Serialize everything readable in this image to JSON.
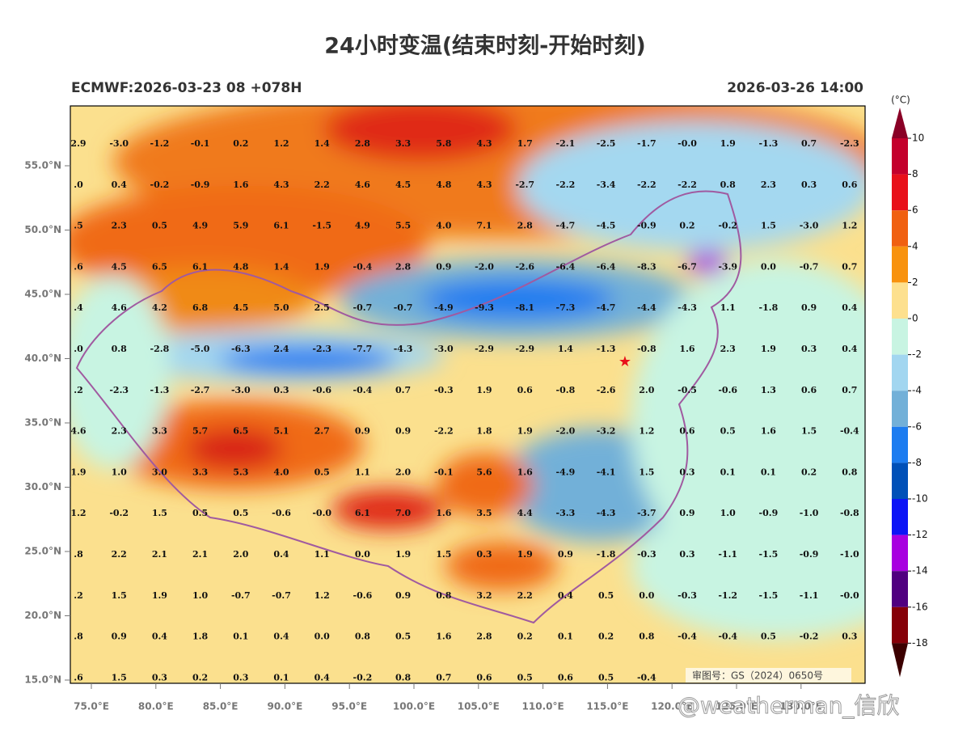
{
  "header": {
    "title": "24小时变温(结束时刻-开始时刻)",
    "model_run": "ECMWF:2026-03-23 08 +078H",
    "valid_time": "2026-03-26 14:00"
  },
  "map": {
    "lat_ticks": [
      {
        "value": 15,
        "label": "15.0°N"
      },
      {
        "value": 20,
        "label": "20.0°N"
      },
      {
        "value": 25,
        "label": "25.0°N"
      },
      {
        "value": 30,
        "label": "30.0°N"
      },
      {
        "value": 35,
        "label": "35.0°N"
      },
      {
        "value": 40,
        "label": "40.0°N"
      },
      {
        "value": 45,
        "label": "45.0°N"
      },
      {
        "value": 50,
        "label": "50.0°N"
      },
      {
        "value": 55,
        "label": "55.0°N"
      }
    ],
    "lon_ticks": [
      {
        "value": 75,
        "label": "75.0°E"
      },
      {
        "value": 80,
        "label": "80.0°E"
      },
      {
        "value": 85,
        "label": "85.0°E"
      },
      {
        "value": 90,
        "label": "90.0°E"
      },
      {
        "value": 95,
        "label": "95.0°E"
      },
      {
        "value": 100,
        "label": "100.0°E"
      },
      {
        "value": 105,
        "label": "105.0°E"
      },
      {
        "value": 110,
        "label": "110.0°E"
      },
      {
        "value": 115,
        "label": "115.0°E"
      },
      {
        "value": 120,
        "label": "120.0°E"
      },
      {
        "value": 125,
        "label": "125.0°E"
      },
      {
        "value": 130,
        "label": "130.0°E"
      }
    ],
    "grid_values": [
      [
        "2.9",
        "-3.0",
        "-1.2",
        "-0.1",
        "0.2",
        "1.2",
        "1.4",
        "2.8",
        "3.3",
        "5.8",
        "4.3",
        "1.7",
        "-2.1",
        "-2.5",
        "-1.7",
        "-0.0",
        "1.9",
        "-1.3",
        "0.7",
        "-2.3"
      ],
      [
        ".0",
        "0.4",
        "-0.2",
        "-0.9",
        "1.6",
        "4.3",
        "2.2",
        "4.6",
        "4.5",
        "4.8",
        "4.3",
        "-2.7",
        "-2.2",
        "-3.4",
        "-2.2",
        "-2.2",
        "0.8",
        "2.3",
        "0.3",
        "0.6"
      ],
      [
        ".5",
        "2.3",
        "0.5",
        "4.9",
        "5.9",
        "6.1",
        "-1.5",
        "4.9",
        "5.5",
        "4.0",
        "7.1",
        "2.8",
        "-4.7",
        "-4.5",
        "-0.9",
        "0.2",
        "-0.2",
        "1.5",
        "-3.0",
        "1.2"
      ],
      [
        ".6",
        "4.5",
        "6.5",
        "6.1",
        "4.8",
        "1.4",
        "1.9",
        "-0.4",
        "2.8",
        "0.9",
        "-2.0",
        "-2.6",
        "-6.4",
        "-6.4",
        "-8.3",
        "-6.7",
        "-3.9",
        "0.0",
        "-0.7",
        "0.7"
      ],
      [
        ".4",
        "4.6",
        "4.2",
        "6.8",
        "4.5",
        "5.0",
        "2.5",
        "-0.7",
        "-0.7",
        "-4.9",
        "-9.3",
        "-8.1",
        "-7.3",
        "-4.7",
        "-4.4",
        "-4.3",
        "1.1",
        "-1.8",
        "0.9",
        "0.4"
      ],
      [
        ".0",
        "0.8",
        "-2.8",
        "-5.0",
        "-6.3",
        "2.4",
        "-2.3",
        "-7.7",
        "-4.3",
        "-3.0",
        "-2.9",
        "-2.9",
        "1.4",
        "-1.3",
        "-0.8",
        "1.6",
        "2.3",
        "1.9",
        "0.3",
        "0.4"
      ],
      [
        ".2",
        "-2.3",
        "-1.3",
        "-2.7",
        "-3.0",
        "0.3",
        "-0.6",
        "-0.4",
        "0.7",
        "-0.3",
        "1.9",
        "0.6",
        "-0.8",
        "-2.6",
        "2.0",
        "-0.5",
        "-0.6",
        "1.3",
        "0.6",
        "0.7"
      ],
      [
        "4.6",
        "2.3",
        "3.3",
        "5.7",
        "6.5",
        "5.1",
        "2.7",
        "0.9",
        "0.9",
        "-2.2",
        "1.8",
        "1.9",
        "-2.0",
        "-3.2",
        "1.2",
        "0.6",
        "0.5",
        "1.6",
        "1.5",
        "-0.4"
      ],
      [
        "1.9",
        "1.0",
        "3.0",
        "3.3",
        "5.3",
        "4.0",
        "0.5",
        "1.1",
        "2.0",
        "-0.1",
        "5.6",
        "1.6",
        "-4.9",
        "-4.1",
        "1.5",
        "0.3",
        "0.1",
        "0.1",
        "0.2",
        "0.8"
      ],
      [
        "1.2",
        "-0.2",
        "1.5",
        "0.5",
        "0.5",
        "-0.6",
        "-0.0",
        "6.1",
        "7.0",
        "1.6",
        "3.5",
        "4.4",
        "-3.3",
        "-4.3",
        "-3.7",
        "0.9",
        "1.0",
        "-0.9",
        "-1.0",
        "-0.8"
      ],
      [
        ".8",
        "2.2",
        "2.1",
        "2.1",
        "2.0",
        "0.4",
        "1.1",
        "0.0",
        "1.9",
        "1.5",
        "0.3",
        "1.9",
        "0.9",
        "-1.8",
        "-0.3",
        "0.3",
        "-1.1",
        "-1.5",
        "-0.9",
        "-1.0"
      ],
      [
        ".2",
        "1.5",
        "1.9",
        "1.0",
        "-0.7",
        "-0.7",
        "1.2",
        "-0.6",
        "0.9",
        "0.8",
        "3.2",
        "2.2",
        "0.4",
        "0.5",
        "0.0",
        "-0.3",
        "-1.2",
        "-1.5",
        "-1.1",
        "-0.0"
      ],
      [
        ".8",
        "0.9",
        "0.4",
        "1.8",
        "0.1",
        "0.4",
        "0.0",
        "0.8",
        "0.5",
        "1.6",
        "2.8",
        "0.2",
        "0.1",
        "0.2",
        "0.8",
        "-0.4",
        "-0.4",
        "0.5",
        "-0.2",
        "0.3"
      ],
      [
        ".6",
        "1.5",
        "0.3",
        "0.2",
        "0.3",
        "0.1",
        "0.4",
        "-0.2",
        "0.8",
        "0.7",
        "0.6",
        "0.5",
        "0.6",
        "0.5",
        "-0.4"
      ]
    ]
  },
  "colorbar": {
    "unit": "(°C)",
    "levels": [
      10,
      8,
      6,
      4,
      2,
      0,
      -2,
      -4,
      -6,
      -8,
      -10,
      -12,
      -14,
      -16,
      -18
    ],
    "colors": [
      "#8a0026",
      "#c4002c",
      "#e8101a",
      "#f06010",
      "#f8920e",
      "#fde08e",
      "#c8f4e2",
      "#a2d6f0",
      "#72b0d8",
      "#1c7cf0",
      "#0050b8",
      "#0c14f6",
      "#a800e0",
      "#500080",
      "#860008",
      "#3c0000"
    ]
  },
  "footer": {
    "approval": "审图号：GS（2024）0650号",
    "watermark": "@weatherman_信欣"
  }
}
